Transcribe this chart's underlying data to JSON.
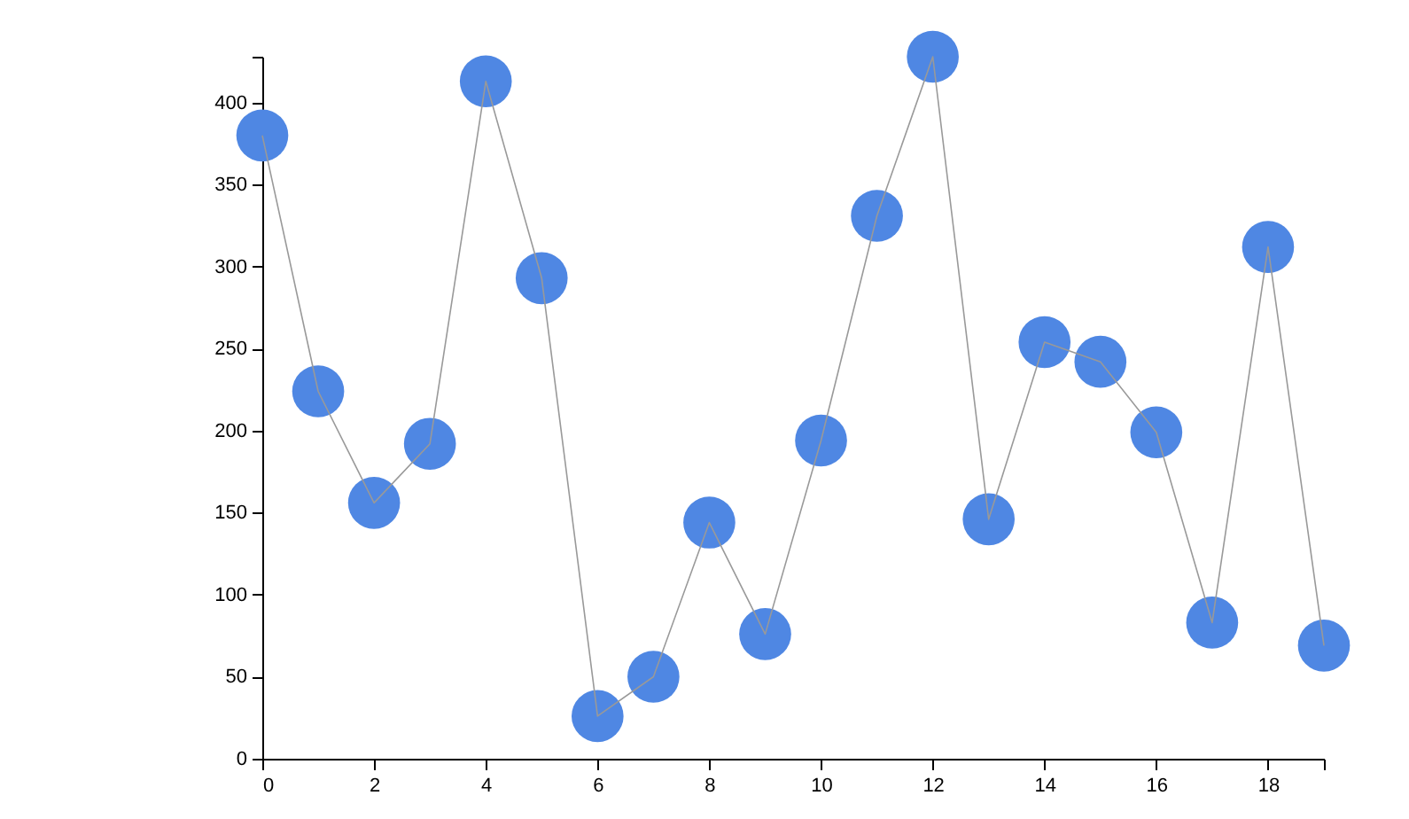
{
  "chart_data": {
    "type": "line",
    "x": [
      0,
      1,
      2,
      3,
      4,
      5,
      6,
      7,
      8,
      9,
      10,
      11,
      12,
      13,
      14,
      15,
      16,
      17,
      18,
      19
    ],
    "series": [
      {
        "type": "scatter",
        "color": "#4f87e3",
        "marker": "circle",
        "values": [
          380,
          224,
          156,
          192,
          413,
          293,
          26,
          50,
          144,
          76,
          194,
          331,
          428,
          146,
          254,
          242,
          199,
          83,
          312,
          69
        ]
      },
      {
        "color": "#999999",
        "marker": "none",
        "values": [
          380,
          224,
          156,
          192,
          413,
          293,
          26,
          50,
          144,
          76,
          194,
          331,
          428,
          146,
          254,
          242,
          199,
          83,
          312,
          69
        ]
      }
    ],
    "xlim": [
      0,
      19
    ],
    "ylim": [
      0,
      428
    ],
    "xticks": [
      0,
      2,
      4,
      6,
      8,
      10,
      12,
      14,
      16,
      18,
      {
        "value": 19,
        "label": null
      }
    ],
    "yticks": [
      0,
      50,
      100,
      150,
      200,
      250,
      300,
      350,
      400,
      {
        "value": 428,
        "label": null
      }
    ]
  }
}
